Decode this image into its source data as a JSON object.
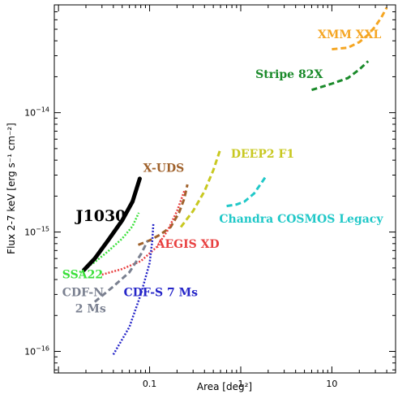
{
  "chart_data": {
    "type": "line",
    "title": "",
    "xlabel": "Area [deg²]",
    "ylabel": "Flux 2-7 keV [erg s⁻¹ cm⁻²]",
    "xscale": "log",
    "yscale": "log",
    "xlim": [
      0.009,
      50
    ],
    "ylim": [
      6.6e-17,
      8e-14
    ],
    "grid": false,
    "legend": "none",
    "x_ticks": [
      {
        "value": 0.1,
        "label": "0.1"
      },
      {
        "value": 1,
        "label": "1"
      },
      {
        "value": 10,
        "label": "10"
      }
    ],
    "y_ticks": [
      {
        "value": 1e-16,
        "base": "10",
        "exp": "−16"
      },
      {
        "value": 1e-15,
        "base": "10",
        "exp": "−15"
      },
      {
        "value": 1e-14,
        "base": "10",
        "exp": "−14"
      }
    ],
    "series": [
      {
        "name": "XMM XXL",
        "color": "#f5a623",
        "style": "dashed",
        "width": 3,
        "points": [
          [
            10,
            3.4e-14
          ],
          [
            15,
            3.5e-14
          ],
          [
            20,
            3.9e-14
          ],
          [
            25,
            4.5e-14
          ],
          [
            30,
            5.3e-14
          ],
          [
            35,
            6.3e-14
          ],
          [
            40,
            7.6e-14
          ]
        ],
        "label_pos": [
          7,
          4.2e-14
        ]
      },
      {
        "name": "Stripe 82X",
        "color": "#1a8a2a",
        "style": "dashed",
        "width": 3,
        "points": [
          [
            6,
            1.55e-14
          ],
          [
            10,
            1.75e-14
          ],
          [
            15,
            1.95e-14
          ],
          [
            20,
            2.3e-14
          ],
          [
            25,
            2.7e-14
          ]
        ],
        "label_pos": [
          1.45,
          1.95e-14
        ]
      },
      {
        "name": "DEEP2 F1",
        "color": "#c8c820",
        "style": "dashed",
        "width": 3,
        "points": [
          [
            0.22,
            1.1e-15
          ],
          [
            0.3,
            1.5e-15
          ],
          [
            0.4,
            2.2e-15
          ],
          [
            0.5,
            3.3e-15
          ],
          [
            0.6,
            5e-15
          ]
        ],
        "label_pos": [
          0.78,
          4.2e-15
        ]
      },
      {
        "name": "X-UDS",
        "color": "#a0622c",
        "style": "dashed",
        "width": 3,
        "points": [
          [
            0.075,
            7.8e-16
          ],
          [
            0.1,
            8.5e-16
          ],
          [
            0.13,
            9.5e-16
          ],
          [
            0.17,
            1.1e-15
          ],
          [
            0.21,
            1.45e-15
          ],
          [
            0.24,
            1.9e-15
          ],
          [
            0.26,
            2.5e-15
          ]
        ],
        "label_pos": [
          0.085,
          3.2e-15
        ]
      },
      {
        "name": "Chandra COSMOS Legacy",
        "color": "#20c8c8",
        "style": "dashed",
        "width": 3,
        "points": [
          [
            0.7,
            1.65e-15
          ],
          [
            0.9,
            1.7e-15
          ],
          [
            1.1,
            1.8e-15
          ],
          [
            1.4,
            2.1e-15
          ],
          [
            1.7,
            2.6e-15
          ],
          [
            1.9,
            2.95e-15
          ]
        ],
        "label_pos": [
          0.58,
          1.2e-15
        ]
      },
      {
        "name": "AEGIS XD",
        "color": "#e84040",
        "style": "dotted",
        "width": 2.5,
        "points": [
          [
            0.03,
            4.4e-16
          ],
          [
            0.05,
            4.9e-16
          ],
          [
            0.08,
            5.7e-16
          ],
          [
            0.12,
            7.5e-16
          ],
          [
            0.16,
            1.05e-15
          ],
          [
            0.2,
            1.5e-15
          ],
          [
            0.24,
            2.2e-15
          ]
        ],
        "label_pos": [
          0.118,
          7.4e-16
        ]
      },
      {
        "name": "SSA22",
        "color": "#3ae03a",
        "style": "dotted",
        "width": 2.5,
        "points": [
          [
            0.017,
            4.6e-16
          ],
          [
            0.025,
            5.6e-16
          ],
          [
            0.035,
            6.9e-16
          ],
          [
            0.05,
            8.8e-16
          ],
          [
            0.065,
            1.12e-15
          ],
          [
            0.076,
            1.45e-15
          ]
        ],
        "label_pos": [
          0.011,
          4.1e-16
        ]
      },
      {
        "name": "CDF-N",
        "name2": "2 Ms",
        "color": "#7a8090",
        "style": "dashed",
        "width": 3,
        "points": [
          [
            0.025,
            2.6e-16
          ],
          [
            0.04,
            3.5e-16
          ],
          [
            0.06,
            4.6e-16
          ],
          [
            0.08,
            6.5e-16
          ],
          [
            0.095,
            8.4e-16
          ]
        ],
        "label_pos": [
          0.011,
          2.9e-16
        ]
      },
      {
        "name": "CDF-S 7 Ms",
        "color": "#2525c8",
        "style": "dotted",
        "width": 2.5,
        "points": [
          [
            0.04,
            9.4e-17
          ],
          [
            0.06,
            1.6e-16
          ],
          [
            0.08,
            3e-16
          ],
          [
            0.1,
            5.5e-16
          ],
          [
            0.107,
            8.5e-16
          ],
          [
            0.11,
            1.18e-15
          ]
        ],
        "label_pos": [
          0.052,
          2.9e-16
        ]
      },
      {
        "name": "J1030",
        "color": "#000000",
        "style": "solid",
        "width": 5,
        "points": [
          [
            0.019,
            4.8e-16
          ],
          [
            0.025,
            6e-16
          ],
          [
            0.035,
            8.5e-16
          ],
          [
            0.05,
            1.25e-15
          ],
          [
            0.065,
            1.8e-15
          ],
          [
            0.078,
            2.8e-15
          ]
        ],
        "label_pos": [
          0.0155,
          1.24e-15
        ]
      }
    ]
  }
}
